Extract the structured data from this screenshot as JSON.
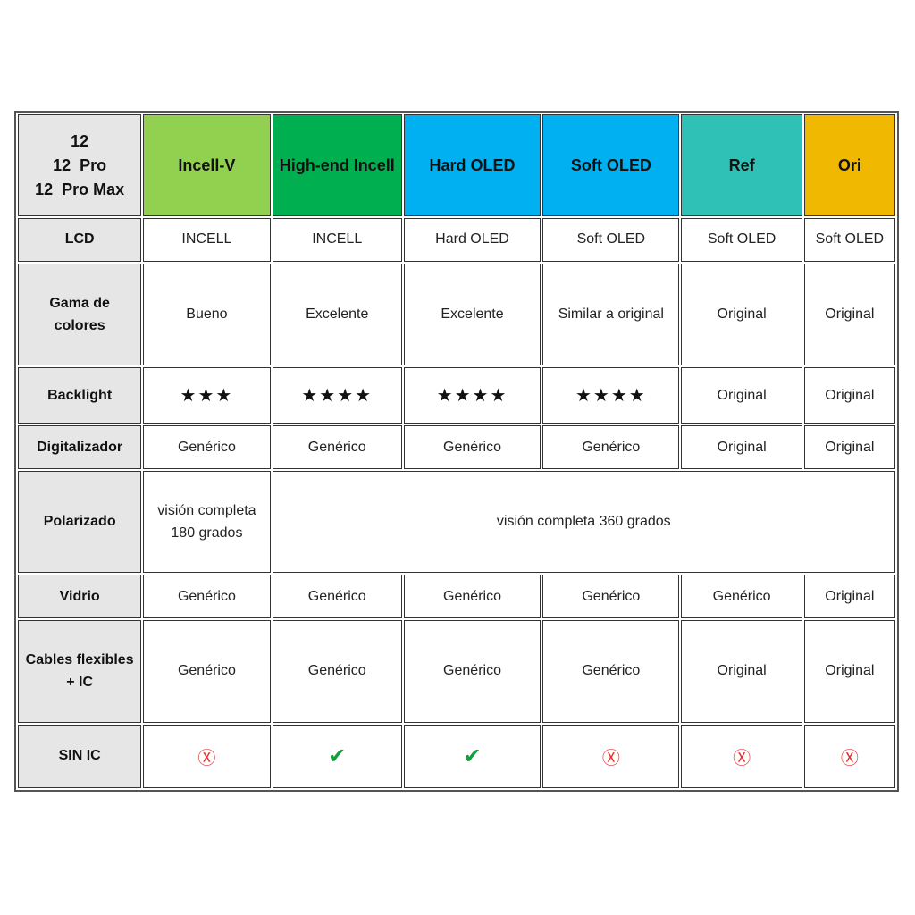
{
  "header": {
    "corner": [
      "12",
      "12  Pro",
      "12  Pro Max"
    ],
    "columns": [
      {
        "label": "Incell-V",
        "color": "#92d050"
      },
      {
        "label": "High-end Incell",
        "color": "#00b050"
      },
      {
        "label": "Hard OLED",
        "color": "#00b0f0"
      },
      {
        "label": "Soft OLED",
        "color": "#00b0f0"
      },
      {
        "label": "Ref",
        "color": "#2fc1b5"
      },
      {
        "label": "Ori",
        "color": "#f0b800"
      }
    ]
  },
  "rows": {
    "lcd": {
      "label": "LCD",
      "cells": [
        "INCELL",
        "INCELL",
        "Hard OLED",
        "Soft OLED",
        "Soft OLED",
        "Soft OLED"
      ]
    },
    "gama": {
      "label1": "Gama de",
      "label2": "colores",
      "cells": [
        "Bueno",
        "Excelente",
        "Excelente",
        "Similar a original",
        "Original",
        "Original"
      ]
    },
    "backlight": {
      "label": "Backlight",
      "cells": [
        "★★★",
        "★★★★",
        "★★★★",
        "★★★★",
        "Original",
        "Original"
      ]
    },
    "digitalizador": {
      "label": "Digitalizador",
      "cells": [
        "Genérico",
        "Genérico",
        "Genérico",
        "Genérico",
        "Original",
        "Original"
      ]
    },
    "polarizado": {
      "label": "Polarizado",
      "first1": "visión completa",
      "first2": "180 grados",
      "rest": "visión completa 360 grados"
    },
    "vidrio": {
      "label": "Vidrio",
      "cells": [
        "Genérico",
        "Genérico",
        "Genérico",
        "Genérico",
        "Genérico",
        "Original"
      ]
    },
    "cables": {
      "label1": "Cables flexibles",
      "label2": "+ IC",
      "cells": [
        "Genérico",
        "Genérico",
        "Genérico",
        "Genérico",
        "Original",
        "Original"
      ]
    },
    "sinic": {
      "label": "SIN IC",
      "cells": [
        "Ⓧ",
        "✔",
        "✔",
        "Ⓧ",
        "Ⓧ",
        "Ⓧ"
      ],
      "icons": [
        "circled-x-icon",
        "check-icon",
        "check-icon",
        "circled-x-icon",
        "circled-x-icon",
        "circled-x-icon"
      ]
    }
  }
}
